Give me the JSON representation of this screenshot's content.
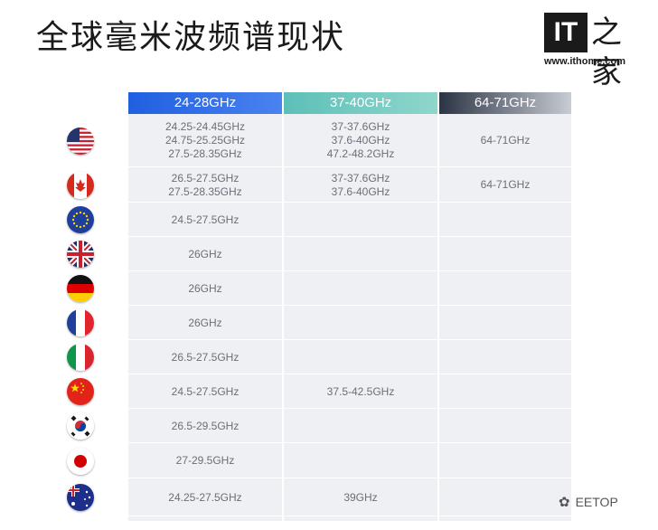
{
  "title": "全球毫米波频谱现状",
  "logo": {
    "mark": "IT",
    "glyph": "之家",
    "url": "www.ithome.com"
  },
  "columns": [
    "24-28GHz",
    "37-40GHz",
    "64-71GHz"
  ],
  "rows": [
    {
      "country": "United States",
      "flag_icon": "us-flag-icon",
      "c1": [
        "24.25-24.45GHz",
        "24.75-25.25GHz",
        "27.5-28.35GHz"
      ],
      "c2": [
        "37-37.6GHz",
        "37.6-40GHz",
        "47.2-48.2GHz"
      ],
      "c3": [
        "64-71GHz"
      ]
    },
    {
      "country": "Canada",
      "flag_icon": "canada-flag-icon",
      "c1": [
        "26.5-27.5GHz",
        "27.5-28.35GHz"
      ],
      "c2": [
        "37-37.6GHz",
        "37.6-40GHz"
      ],
      "c3": [
        "64-71GHz"
      ]
    },
    {
      "country": "European Union",
      "flag_icon": "eu-flag-icon",
      "c1": [
        "24.5-27.5GHz"
      ],
      "c2": [],
      "c3": []
    },
    {
      "country": "United Kingdom",
      "flag_icon": "uk-flag-icon",
      "c1": [
        "26GHz"
      ],
      "c2": [],
      "c3": []
    },
    {
      "country": "Germany",
      "flag_icon": "germany-flag-icon",
      "c1": [
        "26GHz"
      ],
      "c2": [],
      "c3": []
    },
    {
      "country": "France",
      "flag_icon": "france-flag-icon",
      "c1": [
        "26GHz"
      ],
      "c2": [],
      "c3": []
    },
    {
      "country": "Italy",
      "flag_icon": "italy-flag-icon",
      "c1": [
        "26.5-27.5GHz"
      ],
      "c2": [],
      "c3": []
    },
    {
      "country": "China",
      "flag_icon": "china-flag-icon",
      "c1": [
        "24.5-27.5GHz"
      ],
      "c2": [
        "37.5-42.5GHz"
      ],
      "c3": []
    },
    {
      "country": "South Korea",
      "flag_icon": "south-korea-flag-icon",
      "c1": [
        "26.5-29.5GHz"
      ],
      "c2": [],
      "c3": []
    },
    {
      "country": "Japan",
      "flag_icon": "japan-flag-icon",
      "c1": [
        "27-29.5GHz"
      ],
      "c2": [],
      "c3": []
    },
    {
      "country": "Australia",
      "flag_icon": "australia-flag-icon",
      "c1": [
        "24.25-27.5GHz"
      ],
      "c2": [
        "39GHz"
      ],
      "c3": []
    }
  ],
  "watermark": {
    "text": "EETOP",
    "icon": "wechat-icon"
  }
}
